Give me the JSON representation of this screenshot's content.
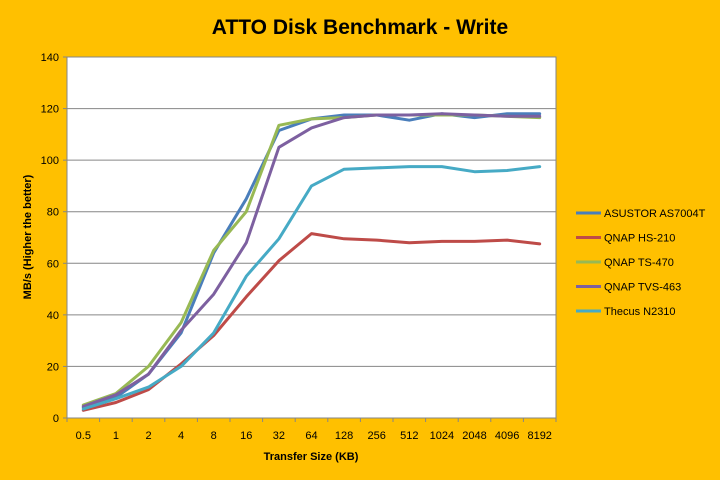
{
  "chart_data": {
    "type": "line",
    "title": "ATTO Disk Benchmark - Write",
    "xlabel": "Transfer Size (KB)",
    "ylabel": "MB/s (Higher the better)",
    "ylim": [
      0,
      140
    ],
    "yticks": [
      0,
      20,
      40,
      60,
      80,
      100,
      120,
      140
    ],
    "grid": "horizontal",
    "legend_position": "right",
    "categories": [
      "0.5",
      "1",
      "2",
      "4",
      "8",
      "16",
      "32",
      "64",
      "128",
      "256",
      "512",
      "1024",
      "2048",
      "4096",
      "8192"
    ],
    "series": [
      {
        "name": "ASUSTOR AS7004T",
        "color": "#4A7EBB",
        "values": [
          4,
          8,
          17,
          33,
          64,
          85,
          111.5,
          116,
          117.5,
          117.5,
          115.5,
          118,
          116.5,
          118,
          118
        ]
      },
      {
        "name": "QNAP HS-210",
        "color": "#BE4B48",
        "values": [
          3,
          6,
          11,
          21,
          32,
          47,
          61,
          71.5,
          69.5,
          69,
          68,
          68.5,
          68.5,
          69,
          67.5
        ]
      },
      {
        "name": "QNAP TS-470",
        "color": "#98B954",
        "values": [
          5,
          9.5,
          20,
          37,
          65,
          80,
          113.5,
          116,
          116.5,
          117.5,
          117.5,
          117.5,
          117.5,
          117,
          116.5
        ]
      },
      {
        "name": "QNAP TVS-463",
        "color": "#7D60A0",
        "values": [
          4.5,
          9,
          17,
          34,
          48,
          68,
          105,
          112.5,
          116.5,
          117.5,
          117.5,
          118,
          117.5,
          117,
          117
        ]
      },
      {
        "name": "Thecus N2310",
        "color": "#46AAC5",
        "values": [
          3.5,
          7.5,
          12,
          20,
          33,
          55,
          69.5,
          90,
          96.5,
          97,
          97.5,
          97.5,
          95.5,
          96,
          97.5
        ]
      }
    ]
  }
}
